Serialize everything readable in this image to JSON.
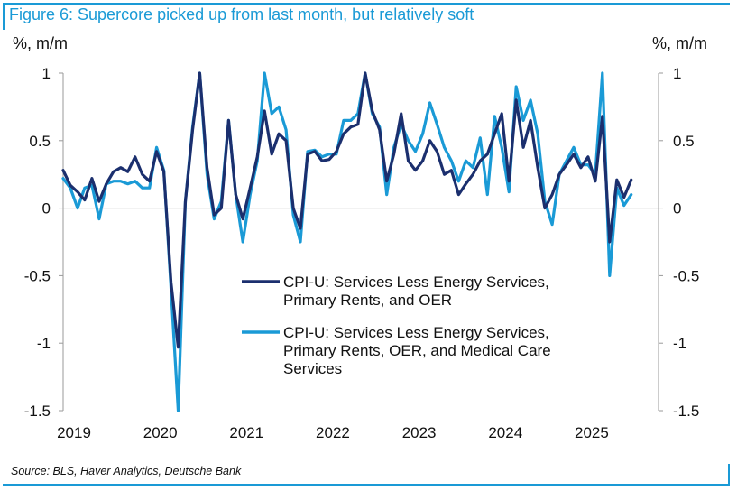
{
  "header": {
    "title": "Figure 6: Supercore picked up from last month, but relatively soft",
    "left_unit": "%, m/m",
    "right_unit": "%, m/m"
  },
  "source": "Source: BLS, Haver Analytics, Deutsche Bank",
  "colors": {
    "accent": "#1a9ad6",
    "series_dark": "#1b2f6e",
    "series_light": "#1a9ad6"
  },
  "chart_data": {
    "type": "line",
    "title": "Figure 6: Supercore picked up from last month, but relatively soft",
    "ylabel": "%, m/m",
    "ylabel_right": "%, m/m",
    "ylim": [
      -1.5,
      1
    ],
    "yticks": [
      -1.5,
      -1,
      -0.5,
      0,
      0.5,
      1
    ],
    "ytick_labels": [
      "-1.5",
      "-1",
      "-0.5",
      "0",
      "0.5",
      "1"
    ],
    "xlim": [
      2019.0,
      2025.9
    ],
    "xticks": [
      2019,
      2020,
      2021,
      2022,
      2023,
      2024,
      2025
    ],
    "xtick_labels": [
      "2019",
      "2020",
      "2021",
      "2022",
      "2023",
      "2024",
      "2025"
    ],
    "grid": false,
    "legend_position": "lower-right",
    "series": [
      {
        "name": "CPI-U: Services Less Energy Services, Primary Rents, and OER",
        "color": "#1b2f6e",
        "x": [
          2019.0,
          2019.083,
          2019.167,
          2019.25,
          2019.333,
          2019.417,
          2019.5,
          2019.583,
          2019.667,
          2019.75,
          2019.833,
          2019.917,
          2020.0,
          2020.083,
          2020.167,
          2020.25,
          2020.333,
          2020.417,
          2020.5,
          2020.583,
          2020.667,
          2020.75,
          2020.833,
          2020.917,
          2021.0,
          2021.083,
          2021.167,
          2021.25,
          2021.333,
          2021.417,
          2021.5,
          2021.583,
          2021.667,
          2021.75,
          2021.833,
          2021.917,
          2022.0,
          2022.083,
          2022.167,
          2022.25,
          2022.333,
          2022.417,
          2022.5,
          2022.583,
          2022.667,
          2022.75,
          2022.833,
          2022.917,
          2023.0,
          2023.083,
          2023.167,
          2023.25,
          2023.333,
          2023.417,
          2023.5,
          2023.583,
          2023.667,
          2023.75,
          2023.833,
          2023.917,
          2024.0,
          2024.083,
          2024.167,
          2024.25,
          2024.333,
          2024.417,
          2024.5,
          2024.583,
          2024.667,
          2024.75,
          2024.833,
          2024.917,
          2025.0,
          2025.083,
          2025.167,
          2025.25,
          2025.333,
          2025.417
        ],
        "y": [
          0.28,
          0.17,
          0.12,
          0.06,
          0.22,
          0.05,
          0.18,
          0.27,
          0.3,
          0.27,
          0.38,
          0.25,
          0.2,
          0.42,
          0.27,
          -0.55,
          -1.03,
          0.05,
          0.58,
          1.0,
          0.3,
          -0.05,
          0.0,
          0.65,
          0.1,
          -0.08,
          0.15,
          0.38,
          0.72,
          0.4,
          0.55,
          0.5,
          0.0,
          -0.15,
          0.4,
          0.42,
          0.35,
          0.36,
          0.42,
          0.55,
          0.6,
          0.62,
          1.0,
          0.72,
          0.58,
          0.2,
          0.4,
          0.7,
          0.35,
          0.28,
          0.35,
          0.5,
          0.42,
          0.25,
          0.28,
          0.1,
          0.18,
          0.25,
          0.35,
          0.4,
          0.55,
          0.7,
          0.2,
          0.8,
          0.45,
          0.65,
          0.3,
          0.0,
          0.1,
          0.25,
          0.32,
          0.4,
          0.3,
          0.38,
          0.2,
          0.68,
          -0.25,
          0.21
        ],
        "extra_x": [
          2025.5,
          2025.583
        ],
        "extra_y": [
          0.08,
          0.21
        ]
      },
      {
        "name": "CPI-U: Services Less Energy Services, Primary Rents, OER, and Medical Care Services",
        "color": "#1a9ad6",
        "x": [
          2019.0,
          2019.083,
          2019.167,
          2019.25,
          2019.333,
          2019.417,
          2019.5,
          2019.583,
          2019.667,
          2019.75,
          2019.833,
          2019.917,
          2020.0,
          2020.083,
          2020.167,
          2020.25,
          2020.333,
          2020.417,
          2020.5,
          2020.583,
          2020.667,
          2020.75,
          2020.833,
          2020.917,
          2021.0,
          2021.083,
          2021.167,
          2021.25,
          2021.333,
          2021.417,
          2021.5,
          2021.583,
          2021.667,
          2021.75,
          2021.833,
          2021.917,
          2022.0,
          2022.083,
          2022.167,
          2022.25,
          2022.333,
          2022.417,
          2022.5,
          2022.583,
          2022.667,
          2022.75,
          2022.833,
          2022.917,
          2023.0,
          2023.083,
          2023.167,
          2023.25,
          2023.333,
          2023.417,
          2023.5,
          2023.583,
          2023.667,
          2023.75,
          2023.833,
          2023.917,
          2024.0,
          2024.083,
          2024.167,
          2024.25,
          2024.333,
          2024.417,
          2024.5,
          2024.583,
          2024.667,
          2024.75,
          2024.833,
          2024.917,
          2025.0,
          2025.083,
          2025.167,
          2025.25,
          2025.333,
          2025.417,
          2025.5,
          2025.583
        ],
        "y": [
          0.22,
          0.15,
          0.0,
          0.15,
          0.17,
          -0.08,
          0.18,
          0.2,
          0.2,
          0.18,
          0.2,
          0.15,
          0.15,
          0.45,
          0.28,
          -0.6,
          -1.5,
          0.05,
          0.6,
          1.0,
          0.25,
          -0.08,
          0.05,
          0.65,
          0.1,
          -0.25,
          0.1,
          0.35,
          1.0,
          0.7,
          0.75,
          0.58,
          -0.05,
          -0.25,
          0.42,
          0.43,
          0.38,
          0.4,
          0.4,
          0.65,
          0.65,
          0.7,
          1.0,
          0.7,
          0.6,
          0.1,
          0.45,
          0.62,
          0.5,
          0.42,
          0.55,
          0.78,
          0.62,
          0.45,
          0.35,
          0.2,
          0.35,
          0.3,
          0.52,
          0.1,
          0.68,
          0.45,
          0.12,
          0.9,
          0.65,
          0.8,
          0.55,
          0.05,
          -0.12,
          0.25,
          0.35,
          0.45,
          0.32,
          0.32,
          0.25,
          1.0,
          -0.5,
          0.15,
          0.02,
          0.1
        ]
      }
    ]
  },
  "legend": {
    "items": [
      {
        "label_lines": [
          "CPI-U: Services Less Energy Services,",
          "Primary Rents, and OER"
        ],
        "color": "#1b2f6e"
      },
      {
        "label_lines": [
          "CPI-U: Services Less Energy Services,",
          "Primary Rents, OER, and Medical Care",
          "Services"
        ],
        "color": "#1a9ad6"
      }
    ]
  }
}
